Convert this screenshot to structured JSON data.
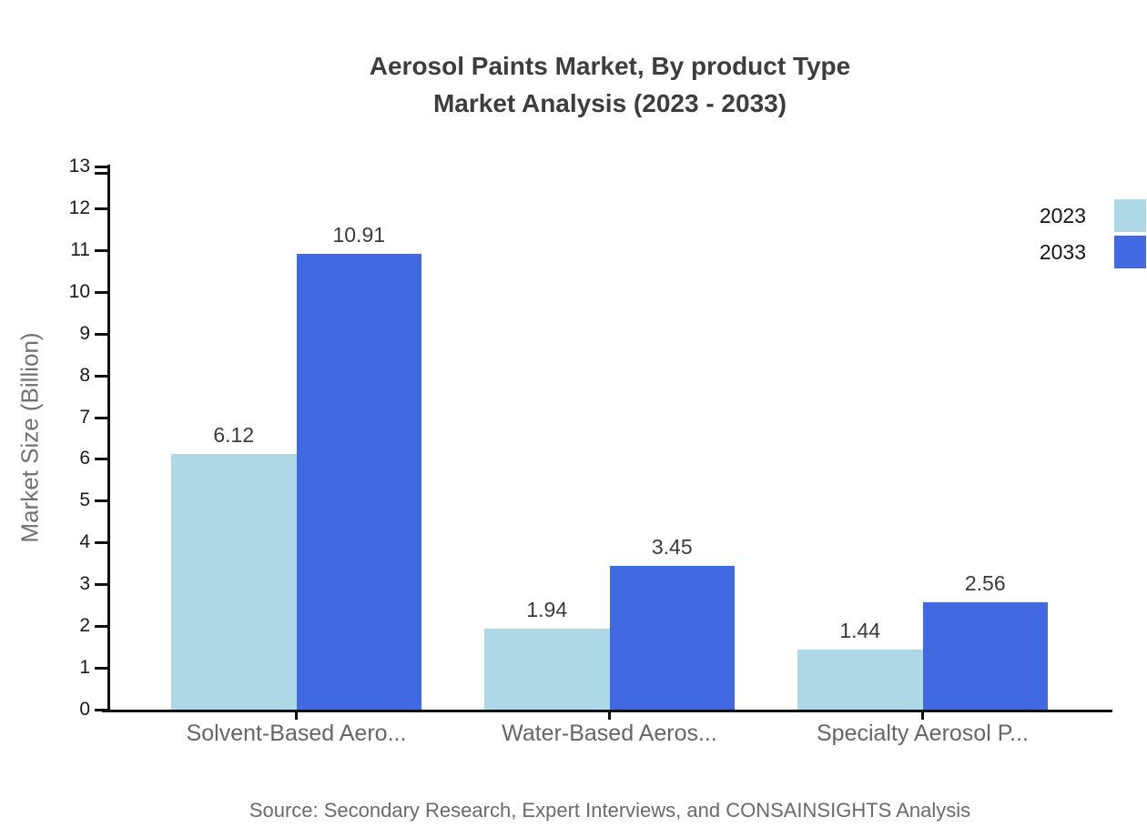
{
  "title": {
    "line1": "Aerosol Paints Market, By product Type",
    "line2": "Market Analysis (2023 - 2033)"
  },
  "y_axis": {
    "label": "Market Size (Billion)",
    "min": 0,
    "max": 13,
    "tick_step": 1
  },
  "legend": {
    "position": "right-top",
    "items": [
      {
        "label": "2023",
        "color": "#ADD8E6"
      },
      {
        "label": "2033",
        "color": "#4169E1"
      }
    ]
  },
  "source": "Source: Secondary Research, Expert Interviews, and CONSAINSIGHTS Analysis",
  "chart_data": {
    "type": "bar",
    "title": "Aerosol Paints Market, By product Type Market Analysis (2023 - 2033)",
    "categories": [
      "Solvent-Based Aero...",
      "Water-Based Aeros...",
      "Specialty Aerosol P..."
    ],
    "series": [
      {
        "name": "2023",
        "color": "#ADD8E6",
        "values": [
          6.12,
          1.94,
          1.44
        ]
      },
      {
        "name": "2033",
        "color": "#4169E1",
        "values": [
          10.91,
          3.45,
          2.56
        ]
      }
    ],
    "value_labels": [
      "6.12",
      "1.94",
      "1.44",
      "10.91",
      "3.45",
      "2.56"
    ],
    "xlabel": "",
    "ylabel": "Market Size (Billion)",
    "ylim": [
      0,
      13
    ],
    "grid": false,
    "legend_position": "right-top",
    "show_value_labels": true
  }
}
